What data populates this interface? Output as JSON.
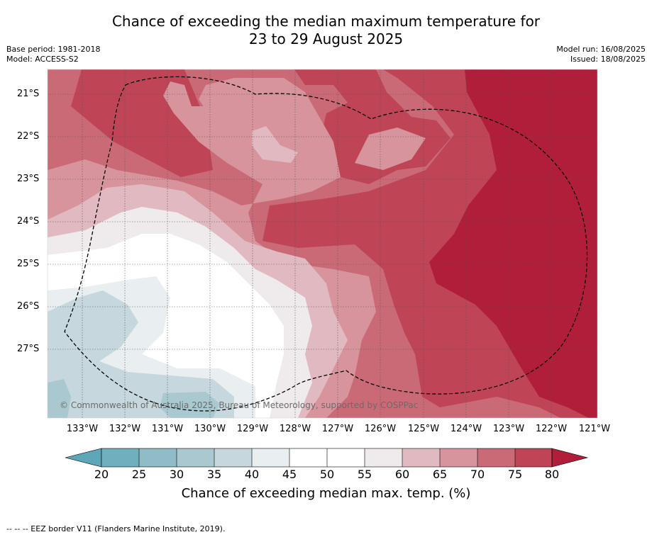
{
  "title_line1": "Chance of exceeding the median maximum temperature for",
  "title_line2": "23 to 29 August 2025",
  "base_period": "Base period: 1981-2018",
  "model": "Model: ACCESS-S2",
  "model_run": "Model run: 16/08/2025",
  "issued": "Issued: 18/08/2025",
  "credit": "© Commonwealth of Australia 2025, Bureau of Meteorology, supported by COSPPac",
  "lat_labels": [
    "21°S",
    "22°S",
    "23°S",
    "24°S",
    "25°S",
    "26°S",
    "27°S"
  ],
  "lon_labels": [
    "133°W",
    "132°W",
    "131°W",
    "130°W",
    "129°W",
    "128°W",
    "127°W",
    "126°W",
    "125°W",
    "124°W",
    "123°W",
    "122°W",
    "121°W"
  ],
  "colorbar": {
    "ticks": [
      "20",
      "25",
      "30",
      "35",
      "40",
      "45",
      "50",
      "55",
      "60",
      "65",
      "70",
      "75",
      "80"
    ],
    "colors": [
      "#5ea7b8",
      "#6fafbe",
      "#8fbcc6",
      "#aac8cf",
      "#c6d8dd",
      "#e9eef0",
      "#ffffff",
      "#ffffff",
      "#efebed",
      "#e1b9c0",
      "#d7949c",
      "#cb6a77",
      "#bf4556",
      "#b01e3a"
    ],
    "label": "Chance of exceeding median max. temp. (%)"
  },
  "footer": "--  --  -- EEZ border V11 (Flanders Marine Institute, 2019)."
}
